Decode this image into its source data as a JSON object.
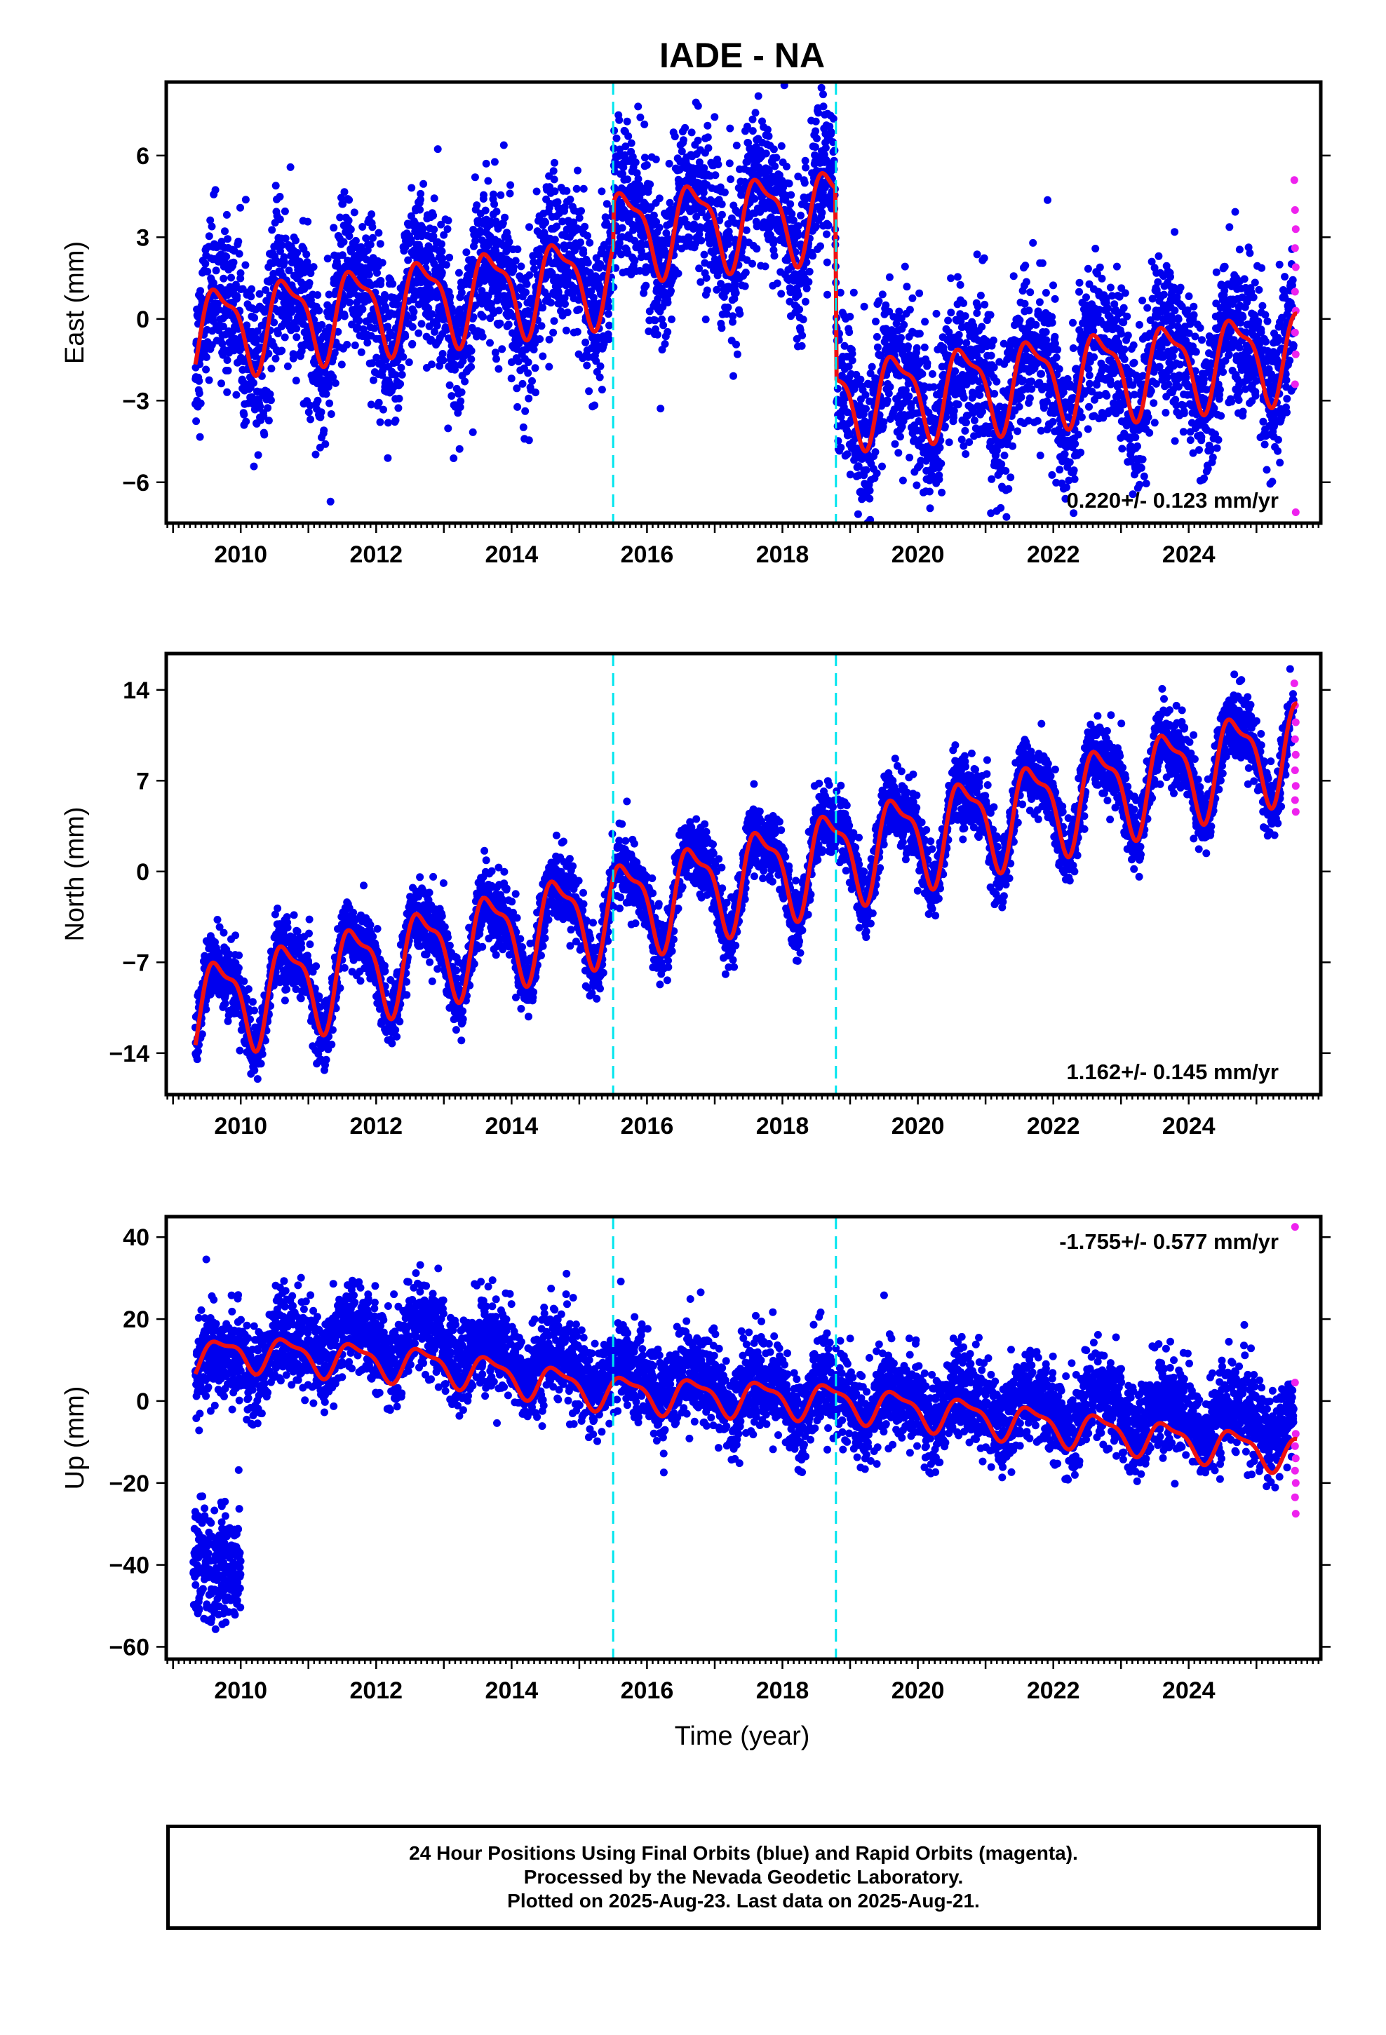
{
  "title": "IADE - NA",
  "x_axis_label": "Time (year)",
  "colors": {
    "final_orbits": "#0000ee",
    "rapid_orbits": "#ee22ee",
    "model": "#ee1111",
    "offsets": "#00e5ee",
    "frame": "#000000"
  },
  "offset_years": [
    2015.5,
    2018.79
  ],
  "caption": {
    "line1": "24 Hour Positions Using Final Orbits (blue) and Rapid Orbits (magenta).",
    "line2": "Processed by the Nevada Geodetic Laboratory.",
    "line3": "Plotted on 2025-Aug-23. Last data on 2025-Aug-21."
  },
  "chart_data": [
    {
      "type": "scatter",
      "component": "east",
      "ylabel": "East (mm)",
      "rate_label": "0.220+/- 0.123 mm/yr",
      "xlim": [
        2008.9,
        2025.95
      ],
      "ylim": [
        -7.5,
        8.7
      ],
      "x_ticks": [
        2010,
        2012,
        2014,
        2016,
        2018,
        2020,
        2022,
        2024
      ],
      "y_ticks": [
        -6,
        -3,
        0,
        3,
        6
      ],
      "seasonal_amplitude_mm": 1.5,
      "model_knots": [
        [
          2009.35,
          -0.4
        ],
        [
          2015.5,
          1.6
        ],
        [
          2015.51,
          3.2
        ],
        [
          2018.78,
          4.0
        ],
        [
          2018.8,
          -3.0
        ],
        [
          2025.6,
          -1.2
        ]
      ],
      "scatter_sd_mm": 1.4,
      "rapid_orbits_points": [
        [
          2025.56,
          5.1
        ],
        [
          2025.57,
          4.0
        ],
        [
          2025.58,
          3.3
        ],
        [
          2025.57,
          2.6
        ],
        [
          2025.58,
          1.9
        ],
        [
          2025.57,
          1.0
        ],
        [
          2025.58,
          0.3
        ],
        [
          2025.57,
          -0.5
        ],
        [
          2025.58,
          -1.3
        ],
        [
          2025.57,
          -2.4
        ],
        [
          2025.58,
          -7.1
        ]
      ]
    },
    {
      "type": "scatter",
      "component": "north",
      "ylabel": "North (mm)",
      "rate_label": "1.162+/- 0.145 mm/yr",
      "xlim": [
        2008.9,
        2025.95
      ],
      "ylim": [
        -17.2,
        16.8
      ],
      "x_ticks": [
        2010,
        2012,
        2014,
        2016,
        2018,
        2020,
        2022,
        2024
      ],
      "y_ticks": [
        -14,
        -7,
        0,
        7,
        14
      ],
      "seasonal_amplitude_mm": 3.4,
      "model_knots": [
        [
          2009.35,
          -10.5
        ],
        [
          2025.6,
          9.8
        ]
      ],
      "scatter_sd_mm": 1.3,
      "rapid_orbits_points": [
        [
          2025.56,
          14.5
        ],
        [
          2025.57,
          12.8
        ],
        [
          2025.58,
          11.5
        ],
        [
          2025.57,
          10.2
        ],
        [
          2025.58,
          9.0
        ],
        [
          2025.57,
          7.8
        ],
        [
          2025.58,
          6.6
        ],
        [
          2025.57,
          5.5
        ],
        [
          2025.58,
          4.6
        ]
      ]
    },
    {
      "type": "scatter",
      "component": "up",
      "ylabel": "Up (mm)",
      "rate_label": "-1.755+/- 0.577 mm/yr",
      "xlim": [
        2008.9,
        2025.95
      ],
      "ylim": [
        -63,
        45
      ],
      "x_ticks": [
        2010,
        2012,
        2014,
        2016,
        2018,
        2020,
        2022,
        2024
      ],
      "y_ticks": [
        -60,
        -40,
        -20,
        0,
        20,
        40
      ],
      "seasonal_amplitude_mm": 4.0,
      "model_knots": [
        [
          2009.35,
          10.0
        ],
        [
          2010.0,
          12.0
        ],
        [
          2013.0,
          8.5
        ],
        [
          2015.5,
          2.0
        ],
        [
          2018.8,
          0.0
        ],
        [
          2025.6,
          -13.0
        ]
      ],
      "scatter_sd_mm": 5.5,
      "data_offset_knots": [
        [
          2009.35,
          8.0
        ],
        [
          2011.5,
          15.0
        ],
        [
          2012.8,
          14.0
        ],
        [
          2015.5,
          6.0
        ],
        [
          2018.8,
          0.0
        ],
        [
          2025.6,
          -5.0
        ]
      ],
      "outlier_cluster": {
        "x_range": [
          2009.3,
          2010.0
        ],
        "y_center": -40,
        "y_sd": 7
      },
      "rapid_orbits_points": [
        [
          2025.57,
          42.5
        ],
        [
          2025.57,
          4.5
        ],
        [
          2025.58,
          -8.0
        ],
        [
          2025.57,
          -11.0
        ],
        [
          2025.58,
          -14.0
        ],
        [
          2025.57,
          -17.0
        ],
        [
          2025.58,
          -20.0
        ],
        [
          2025.57,
          -23.5
        ],
        [
          2025.58,
          -27.5
        ]
      ]
    }
  ]
}
